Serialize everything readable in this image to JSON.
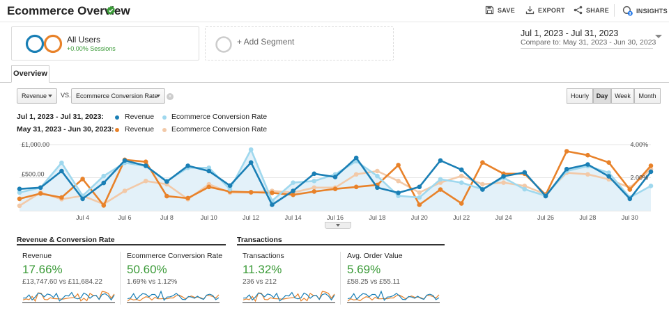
{
  "header": {
    "title": "Ecommerce Overview",
    "save": "SAVE",
    "export": "EXPORT",
    "share": "SHARE",
    "insights": "INSIGHTS",
    "insights_badge": "3"
  },
  "segments": {
    "all_users": {
      "name": "All Users",
      "sub": "+0.00% Sessions"
    },
    "add_label": "+ Add Segment"
  },
  "date": {
    "range": "Jul 1, 2023 - Jul 31, 2023",
    "compare": "Compare to: May 31, 2023 - Jun 30, 2023"
  },
  "tabs": {
    "overview": "Overview"
  },
  "controls": {
    "metric1": "Revenue",
    "vs": "VS.",
    "metric2": "Ecommerce Conversion Rate",
    "periods": [
      "Hourly",
      "Day",
      "Week",
      "Month"
    ],
    "active_period": "Day"
  },
  "legend": {
    "row1_label": "Jul 1, 2023 - Jul 31, 2023:",
    "row2_label": "May 31, 2023 - Jun 30, 2023:",
    "revenue": "Revenue",
    "conversion": "Ecommerce Conversion Rate"
  },
  "colors": {
    "revenue_current": "#1a7fb5",
    "conversion_current": "#9fd8ee",
    "revenue_previous": "#e8822a",
    "conversion_previous": "#f2c9a8",
    "area_fill": "#e3f1f9",
    "positive": "#3a9a37"
  },
  "chart_data": {
    "type": "line",
    "y_left_labels": [
      "£1,000.00",
      "£500.00"
    ],
    "y_left_range": [
      0,
      1000
    ],
    "y_right_labels": [
      "4.00%",
      "2.00%"
    ],
    "y_right_range": [
      0,
      4
    ],
    "x_labels": [
      "Jul 4",
      "Jul 6",
      "Jul 8",
      "Jul 10",
      "Jul 12",
      "Jul 14",
      "Jul 16",
      "Jul 18",
      "Jul 20",
      "Jul 22",
      "Jul 24",
      "Jul 26",
      "Jul 28",
      "Jul 30"
    ],
    "x_label_days": [
      4,
      6,
      8,
      10,
      12,
      14,
      16,
      18,
      20,
      22,
      24,
      26,
      28,
      30
    ],
    "days": [
      1,
      2,
      3,
      4,
      5,
      6,
      7,
      8,
      9,
      10,
      11,
      12,
      13,
      14,
      15,
      16,
      17,
      18,
      19,
      20,
      21,
      22,
      23,
      24,
      25,
      26,
      27,
      28,
      29,
      30,
      31
    ],
    "series": [
      {
        "name": "Revenue (Jul 1, 2023 - Jul 31, 2023)",
        "values": [
          330,
          350,
          600,
          180,
          420,
          760,
          680,
          440,
          680,
          600,
          380,
          730,
          90,
          300,
          560,
          510,
          800,
          350,
          270,
          360,
          760,
          620,
          320,
          520,
          580,
          220,
          630,
          700,
          520,
          180,
          590
        ]
      },
      {
        "name": "Ecommerce Conversion Rate (Jul 1, 2023 - Jul 31, 2023)",
        "values": [
          1.1,
          1.4,
          2.9,
          0.9,
          2.1,
          2.9,
          2.7,
          1.8,
          2.6,
          2.6,
          1.3,
          3.7,
          0.6,
          1.7,
          1.8,
          2.2,
          3.0,
          2.1,
          0.9,
          0.8,
          1.9,
          1.7,
          1.3,
          2.0,
          1.3,
          0.9,
          2.4,
          2.7,
          2.3,
          0.8,
          1.5
        ]
      },
      {
        "name": "Revenue (May 31, 2023 - Jun 30, 2023)",
        "values": [
          180,
          260,
          200,
          480,
          80,
          770,
          740,
          220,
          190,
          360,
          290,
          280,
          270,
          240,
          290,
          330,
          360,
          390,
          690,
          90,
          320,
          110,
          730,
          560,
          560,
          240,
          900,
          840,
          730,
          320,
          680
        ]
      },
      {
        "name": "Ecommerce Conversion Rate (May 31, 2023 - Jun 30, 2023)",
        "values": [
          0.3,
          1.1,
          0.7,
          0.9,
          0.4,
          1.2,
          1.8,
          1.6,
          0.7,
          1.6,
          1.1,
          1.1,
          1.2,
          1.1,
          1.4,
          1.4,
          2.2,
          2.4,
          1.8,
          1.1,
          1.7,
          2.1,
          1.6,
          1.7,
          1.5,
          1.0,
          2.3,
          2.2,
          1.9,
          1.4,
          2.5
        ]
      }
    ]
  },
  "metrics": {
    "group1_title": "Revenue & Conversion Rate",
    "group2_title": "Transactions",
    "tiles": [
      {
        "name": "Revenue",
        "pct": "17.66%",
        "cmp": "£13,747.60 vs £11,684.22"
      },
      {
        "name": "Ecommerce Conversion Rate",
        "pct": "50.60%",
        "cmp": "1.69% vs 1.12%"
      },
      {
        "name": "Transactions",
        "pct": "11.32%",
        "cmp": "236 vs 212"
      },
      {
        "name": "Avg. Order Value",
        "pct": "5.69%",
        "cmp": "£58.25 vs £55.11"
      }
    ]
  }
}
